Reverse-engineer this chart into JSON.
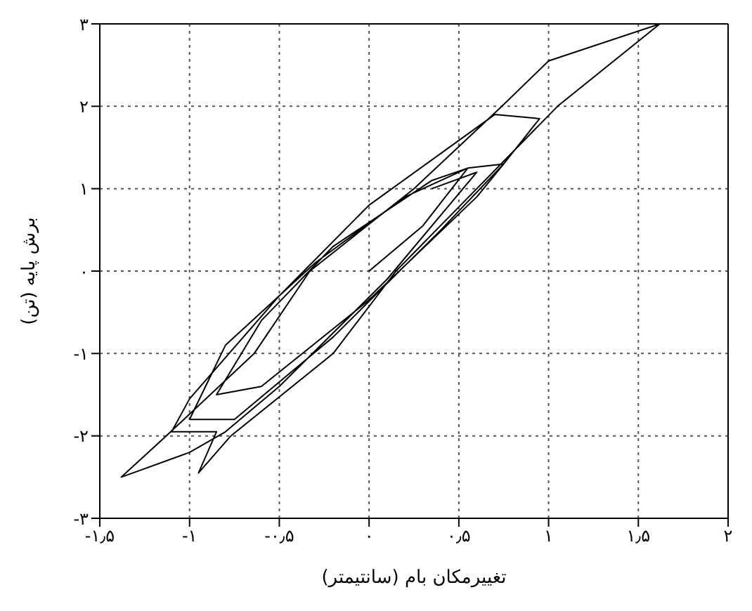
{
  "chart_data": {
    "type": "line",
    "xlabel": "تغییرمکان بام (سانتیمتر)",
    "ylabel": "برش پایه (تن)",
    "x": [
      0,
      0.3,
      0.55,
      0.35,
      -0.2,
      -0.6,
      -0.85,
      -0.6,
      0,
      0.6,
      0.75,
      0.55,
      0.2,
      -0.3,
      -0.8,
      -1.0,
      -0.75,
      -0.2,
      0.4,
      0.75,
      0.95,
      0.7,
      0,
      -0.5,
      -1.0,
      -1.1,
      -0.85,
      -0.95,
      -0.77,
      -0.2,
      0.15,
      0.6,
      1.05,
      1.62,
      1.0,
      0.74,
      0.25,
      -0.33,
      -0.64,
      -1.13,
      -1.38,
      -1.0,
      -0.8,
      -0.5,
      0.1,
      0.6,
      0.35
    ],
    "series": [
      {
        "color": "#000000",
        "values": [
          0,
          0.55,
          1.25,
          1.1,
          0.3,
          -0.6,
          -1.5,
          -1.4,
          -0.35,
          0.9,
          1.3,
          1.25,
          0.9,
          0.1,
          -0.9,
          -1.8,
          -1.8,
          -0.8,
          0.5,
          1.3,
          1.85,
          1.9,
          0.8,
          -0.3,
          -1.55,
          -1.95,
          -1.95,
          -2.45,
          -2.0,
          -1.0,
          0,
          1,
          2,
          3,
          2.55,
          2.0,
          1,
          0,
          -1,
          -2,
          -2.5,
          -2.2,
          -1.95,
          -1.4,
          -0.1,
          1.2,
          1.0
        ]
      }
    ],
    "xlim": [
      -1.5,
      2
    ],
    "ylim": [
      -3,
      3
    ],
    "xticks": [
      {
        "value": -1.5,
        "label": "-۱٫۵"
      },
      {
        "value": -1,
        "label": "-۱"
      },
      {
        "value": -0.5,
        "label": "-۰٫۵"
      },
      {
        "value": 0,
        "label": "۰"
      },
      {
        "value": 0.5,
        "label": "۰٫۵"
      },
      {
        "value": 1,
        "label": "۱"
      },
      {
        "value": 1.5,
        "label": "۱٫۵"
      },
      {
        "value": 2,
        "label": "۲"
      }
    ],
    "yticks": [
      {
        "value": -3,
        "label": "-۳"
      },
      {
        "value": -2,
        "label": "-۲"
      },
      {
        "value": -1,
        "label": "-۱"
      },
      {
        "value": 0,
        "label": "۰"
      },
      {
        "value": 1,
        "label": "۱"
      },
      {
        "value": 2,
        "label": "۲"
      },
      {
        "value": 3,
        "label": "۳"
      }
    ],
    "grid": true,
    "marker": "none",
    "line_style": "solid"
  }
}
